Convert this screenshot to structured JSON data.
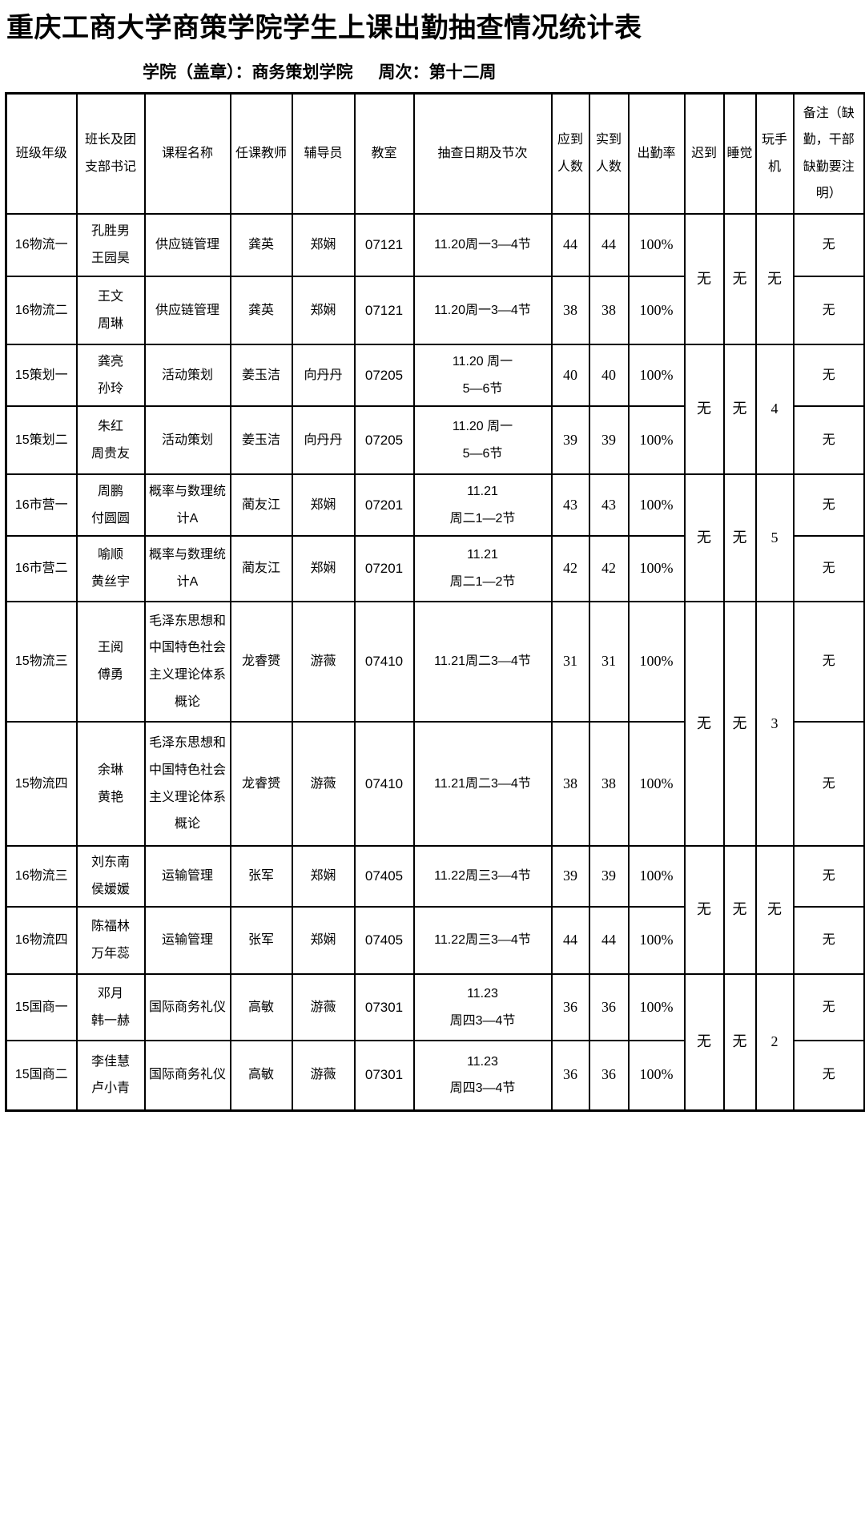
{
  "page": {
    "title": "重庆工商大学商策学院学生上课出勤抽查情况统计表",
    "subtitle_college": "学院（盖章）：商务策划学院",
    "subtitle_week": "周次：第十二周",
    "text_color": "#000000",
    "border_color": "#000000",
    "background_color": "#ffffff"
  },
  "table": {
    "headers": [
      "班级年级",
      "班长及团支部书记",
      "课程名称",
      "任课教师",
      "辅导员",
      "教室",
      "抽查日期及节次",
      "应到人数",
      "实到人数",
      "出勤率",
      "迟到",
      "睡觉",
      "玩手机",
      "备注（缺勤，干部缺勤要注明）"
    ],
    "groups": [
      {
        "late": "无",
        "sleep": "无",
        "phone": "无",
        "rows": [
          {
            "class_name": "16物流一",
            "leaders": "孔胜男\n王园昊",
            "course": "供应链管理",
            "teacher": "龚英",
            "counselor": "郑娴",
            "room": "07121",
            "date": "11.20周一3—4节",
            "expected": "44",
            "actual": "44",
            "rate": "100%",
            "remark": "无"
          },
          {
            "class_name": "16物流二",
            "leaders": "王文\n周琳",
            "course": "供应链管理",
            "teacher": "龚英",
            "counselor": "郑娴",
            "room": "07121",
            "date": "11.20周一3—4节",
            "expected": "38",
            "actual": "38",
            "rate": "100%",
            "remark": "无"
          }
        ]
      },
      {
        "late": "无",
        "sleep": "无",
        "phone": "4",
        "rows": [
          {
            "class_name": "15策划一",
            "leaders": "龚亮\n孙玲",
            "course": "活动策划",
            "teacher": "姜玉洁",
            "counselor": "向丹丹",
            "room": "07205",
            "date": "11.20 周一\n5—6节",
            "expected": "40",
            "actual": "40",
            "rate": "100%",
            "remark": "无"
          },
          {
            "class_name": "15策划二",
            "leaders": "朱红\n周贵友",
            "course": "活动策划",
            "teacher": "姜玉洁",
            "counselor": "向丹丹",
            "room": "07205",
            "date": "11.20 周一\n5—6节",
            "expected": "39",
            "actual": "39",
            "rate": "100%",
            "remark": "无"
          }
        ]
      },
      {
        "late": "无",
        "sleep": "无",
        "phone": "5",
        "rows": [
          {
            "class_name": "16市营一",
            "leaders": "周鹏\n付圆圆",
            "course": "概率与数理统计A",
            "teacher": "蔺友江",
            "counselor": "郑娴",
            "room": "07201",
            "date": "11.21\n周二1—2节",
            "expected": "43",
            "actual": "43",
            "rate": "100%",
            "remark": "无"
          },
          {
            "class_name": "16市营二",
            "leaders": "喻顺\n黄丝宇",
            "course": "概率与数理统计A",
            "teacher": "蔺友江",
            "counselor": "郑娴",
            "room": "07201",
            "date": "11.21\n周二1—2节",
            "expected": "42",
            "actual": "42",
            "rate": "100%",
            "remark": "无"
          }
        ]
      },
      {
        "late": "无",
        "sleep": "无",
        "phone": "3",
        "rows": [
          {
            "class_name": "15物流三",
            "leaders": "王阅\n傅勇",
            "course": "毛泽东思想和中国特色社会主义理论体系概论",
            "teacher": "龙睿赟",
            "counselor": "游薇",
            "room": "07410",
            "date": "11.21周二3—4节",
            "expected": "31",
            "actual": "31",
            "rate": "100%",
            "remark": "无"
          },
          {
            "class_name": "15物流四",
            "leaders": "余琳\n黄艳",
            "course": "毛泽东思想和中国特色社会主义理论体系概论",
            "teacher": "龙睿赟",
            "counselor": "游薇",
            "room": "07410",
            "date": "11.21周二3—4节",
            "expected": "38",
            "actual": "38",
            "rate": "100%",
            "remark": "无"
          }
        ]
      },
      {
        "late": "无",
        "sleep": "无",
        "phone": "无",
        "rows": [
          {
            "class_name": "16物流三",
            "leaders": "刘东南\n侯媛媛",
            "course": "运输管理",
            "teacher": "张军",
            "counselor": "郑娴",
            "room": "07405",
            "date": "11.22周三3—4节",
            "expected": "39",
            "actual": "39",
            "rate": "100%",
            "remark": "无"
          },
          {
            "class_name": "16物流四",
            "leaders": "陈福林\n万年蕊",
            "course": "运输管理",
            "teacher": "张军",
            "counselor": "郑娴",
            "room": "07405",
            "date": "11.22周三3—4节",
            "expected": "44",
            "actual": "44",
            "rate": "100%",
            "remark": "无"
          }
        ]
      },
      {
        "late": "无",
        "sleep": "无",
        "phone": "2",
        "rows": [
          {
            "class_name": "15国商一",
            "leaders": "邓月\n韩一赫",
            "course": "国际商务礼仪",
            "teacher": "高敏",
            "counselor": "游薇",
            "room": "07301",
            "date": "11.23\n周四3—4节",
            "expected": "36",
            "actual": "36",
            "rate": "100%",
            "remark": "无"
          },
          {
            "class_name": "15国商二",
            "leaders": "李佳慧\n卢小青",
            "course": "国际商务礼仪",
            "teacher": "高敏",
            "counselor": "游薇",
            "room": "07301",
            "date": "11.23\n周四3—4节",
            "expected": "36",
            "actual": "36",
            "rate": "100%",
            "remark": "无"
          }
        ]
      }
    ]
  }
}
